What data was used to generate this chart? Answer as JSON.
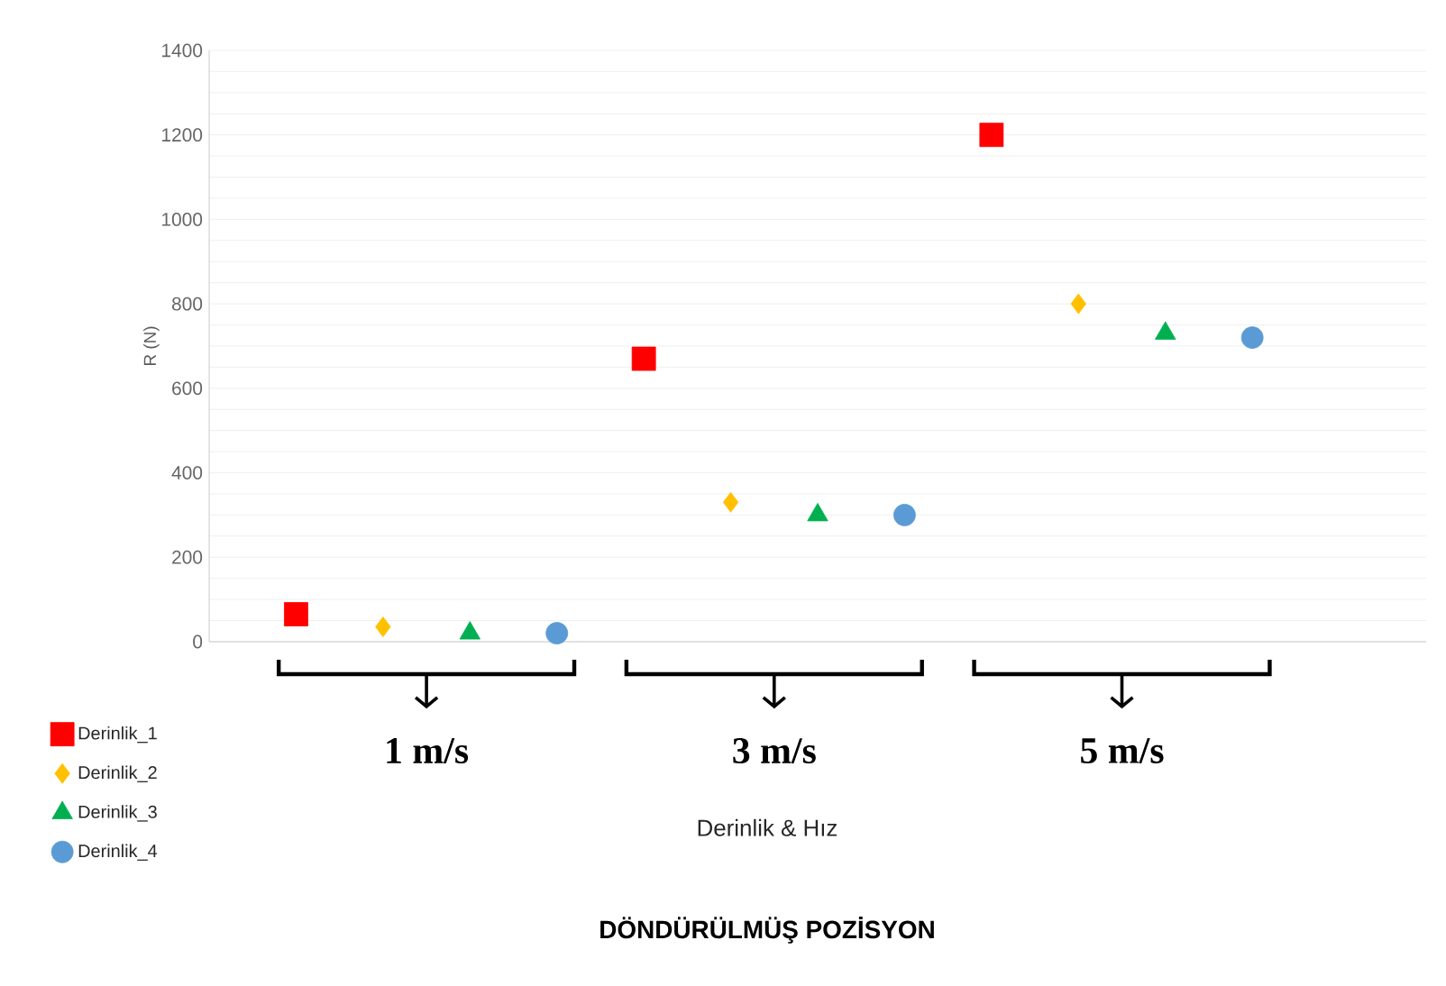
{
  "chart_data": {
    "type": "scatter",
    "title": "DÖNDÜRÜLMÜŞ POZİSYON",
    "xlabel": "Derinlik & Hız",
    "ylabel": "R (N)",
    "categories": [
      "1 m/s",
      "3 m/s",
      "5 m/s"
    ],
    "ylim": [
      0,
      1400
    ],
    "yticks": [
      0,
      200,
      400,
      600,
      800,
      1000,
      1200,
      1400
    ],
    "grid": "y",
    "legend": "bottom left",
    "series": [
      {
        "name": "Derinlik_1",
        "color": "#ff0000",
        "marker": "square",
        "values": [
          65,
          670,
          1200
        ]
      },
      {
        "name": "Derinlik_2",
        "color": "#ffc000",
        "marker": "diamond",
        "values": [
          35,
          330,
          800
        ]
      },
      {
        "name": "Derinlik_3",
        "color": "#00b050",
        "marker": "triangle",
        "values": [
          20,
          300,
          730
        ]
      },
      {
        "name": "Derinlik_4",
        "color": "#5b9bd5",
        "marker": "circle",
        "values": [
          20,
          300,
          720
        ]
      }
    ]
  }
}
